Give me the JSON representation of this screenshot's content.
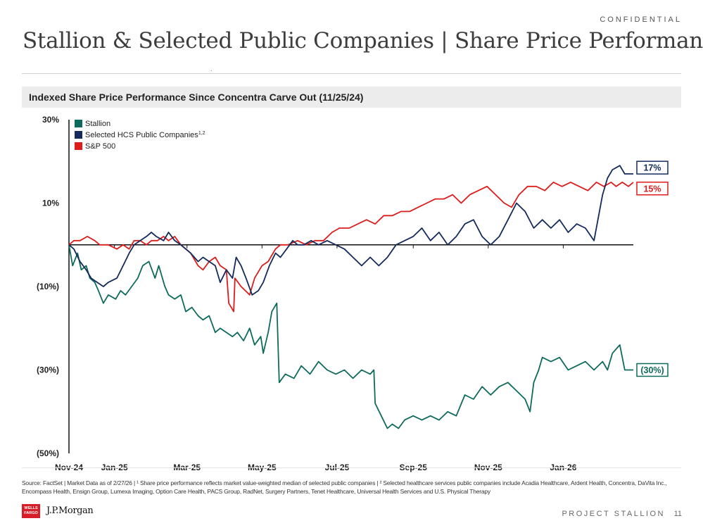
{
  "header": {
    "confidential": "CONFIDENTIAL",
    "title": "Stallion & Selected Public Companies | Share Price Performance"
  },
  "chart_section_title": "Indexed Share Price Performance Since Concentra Carve Out (11/25/24)",
  "chart_data": {
    "type": "line",
    "x_tick_labels": [
      "Nov-24",
      "Jan-25",
      "Mar-25",
      "May-25",
      "Jul-25",
      "Sep-25",
      "Nov-25",
      "Jan-26"
    ],
    "x_tick_dates": [
      "2024-11-25",
      "2025-01-01",
      "2025-03-01",
      "2025-05-01",
      "2025-07-01",
      "2025-09-01",
      "2025-11-01",
      "2026-01-01"
    ],
    "x_range": [
      "2024-11-25",
      "2026-02-27"
    ],
    "y_tick_labels": [
      "30%",
      "10%",
      "(10%)",
      "(30%)",
      "(50%)"
    ],
    "y_tick_values": [
      30,
      10,
      -10,
      -30,
      -50
    ],
    "ylim": [
      -50,
      30
    ],
    "reference_line": 0,
    "grid": false,
    "legend_position": "top-left",
    "series": [
      {
        "name": "Stallion",
        "color": "#0e6b5c",
        "end_label": "(30%)",
        "points": [
          [
            "2024-11-25",
            0
          ],
          [
            "2024-11-28",
            -5
          ],
          [
            "2024-12-02",
            -2
          ],
          [
            "2024-12-05",
            -6
          ],
          [
            "2024-12-09",
            -5
          ],
          [
            "2024-12-12",
            -8
          ],
          [
            "2024-12-16",
            -9
          ],
          [
            "2024-12-19",
            -11
          ],
          [
            "2024-12-23",
            -14
          ],
          [
            "2024-12-27",
            -12
          ],
          [
            "2025-01-02",
            -13
          ],
          [
            "2025-01-06",
            -11
          ],
          [
            "2025-01-10",
            -12
          ],
          [
            "2025-01-15",
            -10
          ],
          [
            "2025-01-20",
            -8
          ],
          [
            "2025-01-24",
            -5
          ],
          [
            "2025-01-29",
            -4
          ],
          [
            "2025-02-03",
            -8
          ],
          [
            "2025-02-06",
            -5
          ],
          [
            "2025-02-11",
            -10
          ],
          [
            "2025-02-14",
            -12
          ],
          [
            "2025-02-19",
            -13
          ],
          [
            "2025-02-24",
            -12
          ],
          [
            "2025-02-28",
            -16
          ],
          [
            "2025-03-05",
            -15
          ],
          [
            "2025-03-10",
            -17
          ],
          [
            "2025-03-14",
            -18
          ],
          [
            "2025-03-19",
            -17
          ],
          [
            "2025-03-24",
            -21
          ],
          [
            "2025-03-28",
            -20
          ],
          [
            "2025-04-02",
            -21
          ],
          [
            "2025-04-07",
            -22
          ],
          [
            "2025-04-11",
            -21
          ],
          [
            "2025-04-16",
            -23
          ],
          [
            "2025-04-21",
            -20
          ],
          [
            "2025-04-25",
            -24
          ],
          [
            "2025-04-30",
            -22
          ],
          [
            "2025-05-02",
            -26
          ],
          [
            "2025-05-06",
            -21
          ],
          [
            "2025-05-09",
            -16
          ],
          [
            "2025-05-13",
            -14
          ],
          [
            "2025-05-15",
            -33
          ],
          [
            "2025-05-20",
            -31
          ],
          [
            "2025-05-27",
            -32
          ],
          [
            "2025-06-02",
            -29
          ],
          [
            "2025-06-09",
            -31
          ],
          [
            "2025-06-16",
            -28
          ],
          [
            "2025-06-23",
            -30
          ],
          [
            "2025-06-30",
            -31
          ],
          [
            "2025-07-07",
            -30
          ],
          [
            "2025-07-14",
            -32
          ],
          [
            "2025-07-21",
            -30
          ],
          [
            "2025-07-28",
            -31
          ],
          [
            "2025-07-31",
            -30
          ],
          [
            "2025-08-01",
            -38
          ],
          [
            "2025-08-06",
            -41
          ],
          [
            "2025-08-11",
            -44
          ],
          [
            "2025-08-15",
            -43
          ],
          [
            "2025-08-20",
            -44
          ],
          [
            "2025-08-25",
            -42
          ],
          [
            "2025-09-01",
            -41
          ],
          [
            "2025-09-08",
            -42
          ],
          [
            "2025-09-15",
            -41
          ],
          [
            "2025-09-22",
            -42
          ],
          [
            "2025-09-29",
            -40
          ],
          [
            "2025-10-06",
            -41
          ],
          [
            "2025-10-13",
            -36
          ],
          [
            "2025-10-20",
            -37
          ],
          [
            "2025-10-27",
            -34
          ],
          [
            "2025-11-03",
            -36
          ],
          [
            "2025-11-10",
            -34
          ],
          [
            "2025-11-17",
            -33
          ],
          [
            "2025-11-24",
            -35
          ],
          [
            "2025-12-01",
            -37
          ],
          [
            "2025-12-05",
            -40
          ],
          [
            "2025-12-08",
            -33
          ],
          [
            "2025-12-12",
            -30
          ],
          [
            "2025-12-15",
            -27
          ],
          [
            "2025-12-22",
            -28
          ],
          [
            "2025-12-29",
            -27
          ],
          [
            "2026-01-05",
            -30
          ],
          [
            "2026-01-12",
            -29
          ],
          [
            "2026-01-19",
            -28
          ],
          [
            "2026-01-26",
            -30
          ],
          [
            "2026-02-02",
            -28
          ],
          [
            "2026-02-06",
            -30
          ],
          [
            "2026-02-10",
            -26
          ],
          [
            "2026-02-16",
            -24
          ],
          [
            "2026-02-20",
            -30
          ],
          [
            "2026-02-27",
            -30
          ]
        ]
      },
      {
        "name": "Selected HCS Public Companies",
        "name_superscript": "1,2",
        "color": "#142a5c",
        "end_label": "17%",
        "points": [
          [
            "2024-11-25",
            0
          ],
          [
            "2024-11-29",
            -1
          ],
          [
            "2024-12-04",
            -4
          ],
          [
            "2024-12-09",
            -6
          ],
          [
            "2024-12-13",
            -8
          ],
          [
            "2024-12-18",
            -9
          ],
          [
            "2024-12-23",
            -10
          ],
          [
            "2024-12-27",
            -9
          ],
          [
            "2025-01-03",
            -8
          ],
          [
            "2025-01-08",
            -5
          ],
          [
            "2025-01-13",
            -2
          ],
          [
            "2025-01-17",
            0
          ],
          [
            "2025-01-22",
            1
          ],
          [
            "2025-01-27",
            2
          ],
          [
            "2025-01-31",
            3
          ],
          [
            "2025-02-04",
            2
          ],
          [
            "2025-02-10",
            1
          ],
          [
            "2025-02-14",
            3
          ],
          [
            "2025-02-19",
            1
          ],
          [
            "2025-02-24",
            0
          ],
          [
            "2025-02-28",
            -1
          ],
          [
            "2025-03-04",
            -2
          ],
          [
            "2025-03-10",
            -4
          ],
          [
            "2025-03-14",
            -3
          ],
          [
            "2025-03-19",
            -4
          ],
          [
            "2025-03-24",
            -5
          ],
          [
            "2025-03-28",
            -9
          ],
          [
            "2025-04-02",
            -6
          ],
          [
            "2025-04-07",
            -8
          ],
          [
            "2025-04-10",
            -3
          ],
          [
            "2025-04-14",
            -5
          ],
          [
            "2025-04-18",
            -8
          ],
          [
            "2025-04-23",
            -12
          ],
          [
            "2025-04-28",
            -11
          ],
          [
            "2025-05-02",
            -9
          ],
          [
            "2025-05-07",
            -5
          ],
          [
            "2025-05-12",
            -2
          ],
          [
            "2025-05-16",
            -3
          ],
          [
            "2025-05-21",
            -1
          ],
          [
            "2025-05-26",
            1
          ],
          [
            "2025-05-30",
            0
          ],
          [
            "2025-06-04",
            0
          ],
          [
            "2025-06-10",
            1
          ],
          [
            "2025-06-16",
            0
          ],
          [
            "2025-06-23",
            1
          ],
          [
            "2025-06-30",
            0
          ],
          [
            "2025-07-07",
            -1
          ],
          [
            "2025-07-14",
            -3
          ],
          [
            "2025-07-21",
            -5
          ],
          [
            "2025-07-28",
            -3
          ],
          [
            "2025-08-04",
            -5
          ],
          [
            "2025-08-11",
            -3
          ],
          [
            "2025-08-18",
            0
          ],
          [
            "2025-08-25",
            1
          ],
          [
            "2025-09-01",
            2
          ],
          [
            "2025-09-08",
            4
          ],
          [
            "2025-09-15",
            1
          ],
          [
            "2025-09-22",
            3
          ],
          [
            "2025-09-29",
            0
          ],
          [
            "2025-10-06",
            2
          ],
          [
            "2025-10-13",
            5
          ],
          [
            "2025-10-20",
            6
          ],
          [
            "2025-10-27",
            2
          ],
          [
            "2025-11-03",
            0
          ],
          [
            "2025-11-10",
            2
          ],
          [
            "2025-11-17",
            6
          ],
          [
            "2025-11-24",
            10
          ],
          [
            "2025-12-01",
            8
          ],
          [
            "2025-12-08",
            4
          ],
          [
            "2025-12-15",
            6
          ],
          [
            "2025-12-22",
            4
          ],
          [
            "2025-12-29",
            6
          ],
          [
            "2026-01-05",
            3
          ],
          [
            "2026-01-12",
            5
          ],
          [
            "2026-01-19",
            4
          ],
          [
            "2026-01-26",
            1
          ],
          [
            "2026-02-02",
            12
          ],
          [
            "2026-02-06",
            16
          ],
          [
            "2026-02-10",
            18
          ],
          [
            "2026-02-16",
            19
          ],
          [
            "2026-02-20",
            17
          ],
          [
            "2026-02-27",
            17
          ]
        ]
      },
      {
        "name": "S&P 500",
        "color": "#dd1c1c",
        "end_label": "15%",
        "points": [
          [
            "2024-11-25",
            0
          ],
          [
            "2024-11-29",
            1
          ],
          [
            "2024-12-04",
            1
          ],
          [
            "2024-12-10",
            2
          ],
          [
            "2024-12-16",
            1
          ],
          [
            "2024-12-20",
            0
          ],
          [
            "2024-12-27",
            0
          ],
          [
            "2025-01-03",
            -1
          ],
          [
            "2025-01-08",
            0
          ],
          [
            "2025-01-13",
            -1
          ],
          [
            "2025-01-17",
            1
          ],
          [
            "2025-01-22",
            1
          ],
          [
            "2025-01-27",
            0
          ],
          [
            "2025-01-31",
            1
          ],
          [
            "2025-02-05",
            1
          ],
          [
            "2025-02-10",
            2
          ],
          [
            "2025-02-14",
            1
          ],
          [
            "2025-02-19",
            2
          ],
          [
            "2025-02-24",
            0
          ],
          [
            "2025-02-28",
            -1
          ],
          [
            "2025-03-04",
            -2
          ],
          [
            "2025-03-10",
            -5
          ],
          [
            "2025-03-14",
            -6
          ],
          [
            "2025-03-19",
            -4
          ],
          [
            "2025-03-24",
            -3
          ],
          [
            "2025-03-28",
            -5
          ],
          [
            "2025-04-02",
            -6
          ],
          [
            "2025-04-04",
            -14
          ],
          [
            "2025-04-08",
            -16
          ],
          [
            "2025-04-09",
            -8
          ],
          [
            "2025-04-14",
            -10
          ],
          [
            "2025-04-21",
            -12
          ],
          [
            "2025-04-25",
            -8
          ],
          [
            "2025-05-01",
            -5
          ],
          [
            "2025-05-06",
            -4
          ],
          [
            "2025-05-12",
            -1
          ],
          [
            "2025-05-16",
            0
          ],
          [
            "2025-05-22",
            0
          ],
          [
            "2025-05-30",
            1
          ],
          [
            "2025-06-06",
            0
          ],
          [
            "2025-06-13",
            1
          ],
          [
            "2025-06-20",
            1
          ],
          [
            "2025-06-27",
            3
          ],
          [
            "2025-07-03",
            4
          ],
          [
            "2025-07-11",
            4
          ],
          [
            "2025-07-18",
            5
          ],
          [
            "2025-07-25",
            6
          ],
          [
            "2025-08-01",
            5
          ],
          [
            "2025-08-08",
            7
          ],
          [
            "2025-08-15",
            7
          ],
          [
            "2025-08-22",
            8
          ],
          [
            "2025-08-29",
            8
          ],
          [
            "2025-09-05",
            9
          ],
          [
            "2025-09-12",
            10
          ],
          [
            "2025-09-19",
            11
          ],
          [
            "2025-09-26",
            11
          ],
          [
            "2025-10-03",
            12
          ],
          [
            "2025-10-10",
            10
          ],
          [
            "2025-10-17",
            12
          ],
          [
            "2025-10-24",
            13
          ],
          [
            "2025-10-31",
            14
          ],
          [
            "2025-11-07",
            12
          ],
          [
            "2025-11-14",
            10
          ],
          [
            "2025-11-20",
            9
          ],
          [
            "2025-11-26",
            12
          ],
          [
            "2025-12-03",
            14
          ],
          [
            "2025-12-10",
            14
          ],
          [
            "2025-12-17",
            13
          ],
          [
            "2025-12-24",
            15
          ],
          [
            "2025-12-31",
            14
          ],
          [
            "2026-01-07",
            15
          ],
          [
            "2026-01-14",
            14
          ],
          [
            "2026-01-21",
            13
          ],
          [
            "2026-01-28",
            15
          ],
          [
            "2026-02-03",
            14
          ],
          [
            "2026-02-09",
            15
          ],
          [
            "2026-02-13",
            14
          ],
          [
            "2026-02-18",
            15
          ],
          [
            "2026-02-23",
            14
          ],
          [
            "2026-02-27",
            15
          ]
        ]
      }
    ]
  },
  "footer": {
    "source_note": "Source: FactSet | Market Data as of 2/27/26 | ¹ Share price performance reflects market value-weighted median of selected public companies | ² Selected healthcare services public companies include Acadia Healthcare, Ardent Health, Concentra, DaVita Inc., Encompass Health, Ensign Group, Lumexa Imaging, Option Care Health, PACS Group, RadNet, Surgery Partners, Tenet Healthcare, Universal Health Services and U.S. Physical Therapy",
    "logo_wells_fargo": "WELLS FARGO",
    "logo_jpmorgan": "J.P.Morgan",
    "project": "PROJECT STALLION",
    "page_number": "11"
  }
}
